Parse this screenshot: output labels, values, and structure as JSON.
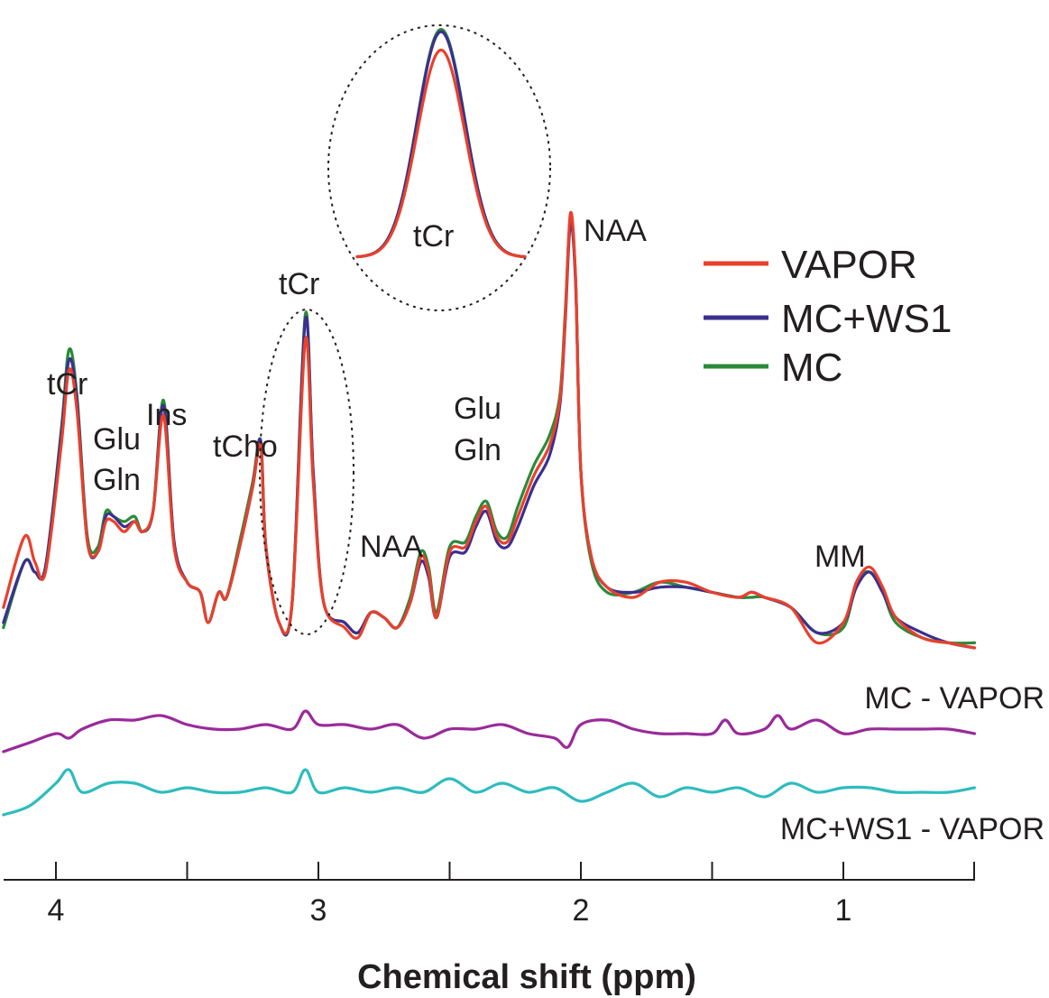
{
  "chart_data": {
    "type": "line",
    "xlabel": "Chemical shift (ppm)",
    "x_reversed": true,
    "xlim": [
      4.2,
      0.5
    ],
    "xticks": [
      4,
      3,
      2,
      1
    ],
    "minor_xticks": [
      3.5,
      2.5,
      1.5
    ],
    "colors": {
      "VAPOR": "#e8412c",
      "MC+WS1": "#3b2f8f",
      "MC": "#2b8a3a",
      "MC - VAPOR": "#9a2a9a",
      "MC+WS1 - VAPOR": "#2ebcbf"
    },
    "series": [
      {
        "name": "VAPOR",
        "points": [
          [
            4.2,
            0.03
          ],
          [
            4.12,
            0.17
          ],
          [
            4.08,
            0.12
          ],
          [
            4.04,
            0.1
          ],
          [
            3.98,
            0.35
          ],
          [
            3.95,
            0.5
          ],
          [
            3.92,
            0.42
          ],
          [
            3.88,
            0.16
          ],
          [
            3.84,
            0.14
          ],
          [
            3.81,
            0.2
          ],
          [
            3.78,
            0.2
          ],
          [
            3.74,
            0.18
          ],
          [
            3.7,
            0.2
          ],
          [
            3.67,
            0.18
          ],
          [
            3.63,
            0.22
          ],
          [
            3.59,
            0.41
          ],
          [
            3.55,
            0.15
          ],
          [
            3.5,
            0.08
          ],
          [
            3.45,
            0.06
          ],
          [
            3.42,
            0.0
          ],
          [
            3.38,
            0.06
          ],
          [
            3.35,
            0.05
          ],
          [
            3.3,
            0.15
          ],
          [
            3.25,
            0.27
          ],
          [
            3.22,
            0.35
          ],
          [
            3.2,
            0.15
          ],
          [
            3.15,
            0.0
          ],
          [
            3.1,
            0.04
          ],
          [
            3.05,
            0.56
          ],
          [
            3.02,
            0.28
          ],
          [
            2.98,
            0.04
          ],
          [
            2.9,
            -0.01
          ],
          [
            2.85,
            -0.03
          ],
          [
            2.8,
            0.02
          ],
          [
            2.75,
            0.01
          ],
          [
            2.7,
            -0.01
          ],
          [
            2.65,
            0.04
          ],
          [
            2.61,
            0.13
          ],
          [
            2.58,
            0.1
          ],
          [
            2.55,
            0.01
          ],
          [
            2.5,
            0.14
          ],
          [
            2.44,
            0.15
          ],
          [
            2.4,
            0.2
          ],
          [
            2.36,
            0.23
          ],
          [
            2.32,
            0.17
          ],
          [
            2.28,
            0.16
          ],
          [
            2.24,
            0.21
          ],
          [
            2.18,
            0.29
          ],
          [
            2.12,
            0.35
          ],
          [
            2.08,
            0.44
          ],
          [
            2.06,
            0.6
          ],
          [
            2.04,
            0.81
          ],
          [
            2.02,
            0.68
          ],
          [
            2.0,
            0.3
          ],
          [
            1.96,
            0.13
          ],
          [
            1.9,
            0.07
          ],
          [
            1.8,
            0.05
          ],
          [
            1.7,
            0.08
          ],
          [
            1.6,
            0.08
          ],
          [
            1.5,
            0.06
          ],
          [
            1.4,
            0.05
          ],
          [
            1.35,
            0.06
          ],
          [
            1.3,
            0.05
          ],
          [
            1.2,
            0.03
          ],
          [
            1.1,
            -0.04
          ],
          [
            1.0,
            0.0
          ],
          [
            0.95,
            0.08
          ],
          [
            0.9,
            0.11
          ],
          [
            0.85,
            0.07
          ],
          [
            0.8,
            0.01
          ],
          [
            0.7,
            -0.03
          ],
          [
            0.6,
            -0.04
          ],
          [
            0.5,
            -0.05
          ]
        ]
      },
      {
        "name": "MC+WS1",
        "points": [
          [
            4.2,
            0.0
          ],
          [
            4.12,
            0.12
          ],
          [
            4.08,
            0.1
          ],
          [
            4.04,
            0.11
          ],
          [
            3.98,
            0.37
          ],
          [
            3.95,
            0.52
          ],
          [
            3.92,
            0.44
          ],
          [
            3.88,
            0.16
          ],
          [
            3.84,
            0.14
          ],
          [
            3.81,
            0.21
          ],
          [
            3.78,
            0.21
          ],
          [
            3.74,
            0.19
          ],
          [
            3.7,
            0.2
          ],
          [
            3.67,
            0.18
          ],
          [
            3.63,
            0.22
          ],
          [
            3.59,
            0.43
          ],
          [
            3.55,
            0.16
          ],
          [
            3.5,
            0.08
          ],
          [
            3.45,
            0.06
          ],
          [
            3.42,
            0.0
          ],
          [
            3.38,
            0.06
          ],
          [
            3.35,
            0.05
          ],
          [
            3.3,
            0.15
          ],
          [
            3.25,
            0.27
          ],
          [
            3.22,
            0.36
          ],
          [
            3.2,
            0.15
          ],
          [
            3.15,
            0.0
          ],
          [
            3.1,
            0.04
          ],
          [
            3.05,
            0.6
          ],
          [
            3.02,
            0.3
          ],
          [
            2.98,
            0.04
          ],
          [
            2.9,
            0.0
          ],
          [
            2.85,
            -0.02
          ],
          [
            2.8,
            0.02
          ],
          [
            2.75,
            0.01
          ],
          [
            2.7,
            -0.01
          ],
          [
            2.65,
            0.04
          ],
          [
            2.61,
            0.12
          ],
          [
            2.58,
            0.09
          ],
          [
            2.55,
            0.01
          ],
          [
            2.5,
            0.13
          ],
          [
            2.44,
            0.14
          ],
          [
            2.4,
            0.19
          ],
          [
            2.36,
            0.22
          ],
          [
            2.32,
            0.16
          ],
          [
            2.28,
            0.15
          ],
          [
            2.24,
            0.19
          ],
          [
            2.18,
            0.27
          ],
          [
            2.12,
            0.33
          ],
          [
            2.08,
            0.43
          ],
          [
            2.06,
            0.59
          ],
          [
            2.04,
            0.79
          ],
          [
            2.02,
            0.67
          ],
          [
            2.0,
            0.3
          ],
          [
            1.96,
            0.13
          ],
          [
            1.9,
            0.07
          ],
          [
            1.8,
            0.06
          ],
          [
            1.7,
            0.07
          ],
          [
            1.6,
            0.07
          ],
          [
            1.5,
            0.06
          ],
          [
            1.4,
            0.05
          ],
          [
            1.35,
            0.06
          ],
          [
            1.3,
            0.05
          ],
          [
            1.2,
            0.03
          ],
          [
            1.1,
            -0.02
          ],
          [
            1.0,
            0.0
          ],
          [
            0.95,
            0.07
          ],
          [
            0.9,
            0.1
          ],
          [
            0.85,
            0.06
          ],
          [
            0.8,
            0.01
          ],
          [
            0.7,
            -0.02
          ],
          [
            0.6,
            -0.04
          ],
          [
            0.5,
            -0.05
          ]
        ]
      },
      {
        "name": "MC",
        "points": [
          [
            4.2,
            -0.01
          ],
          [
            4.12,
            0.12
          ],
          [
            4.08,
            0.1
          ],
          [
            4.04,
            0.11
          ],
          [
            3.98,
            0.38
          ],
          [
            3.95,
            0.54
          ],
          [
            3.92,
            0.45
          ],
          [
            3.88,
            0.17
          ],
          [
            3.84,
            0.15
          ],
          [
            3.81,
            0.22
          ],
          [
            3.78,
            0.21
          ],
          [
            3.74,
            0.2
          ],
          [
            3.7,
            0.21
          ],
          [
            3.67,
            0.18
          ],
          [
            3.63,
            0.22
          ],
          [
            3.59,
            0.44
          ],
          [
            3.55,
            0.16
          ],
          [
            3.5,
            0.08
          ],
          [
            3.45,
            0.06
          ],
          [
            3.42,
            0.0
          ],
          [
            3.38,
            0.06
          ],
          [
            3.35,
            0.05
          ],
          [
            3.3,
            0.16
          ],
          [
            3.25,
            0.28
          ],
          [
            3.22,
            0.36
          ],
          [
            3.2,
            0.15
          ],
          [
            3.15,
            0.0
          ],
          [
            3.1,
            0.04
          ],
          [
            3.05,
            0.61
          ],
          [
            3.02,
            0.3
          ],
          [
            2.98,
            0.04
          ],
          [
            2.9,
            0.0
          ],
          [
            2.85,
            -0.02
          ],
          [
            2.8,
            0.02
          ],
          [
            2.75,
            0.01
          ],
          [
            2.7,
            -0.01
          ],
          [
            2.65,
            0.05
          ],
          [
            2.61,
            0.14
          ],
          [
            2.58,
            0.11
          ],
          [
            2.55,
            0.02
          ],
          [
            2.5,
            0.15
          ],
          [
            2.44,
            0.16
          ],
          [
            2.4,
            0.21
          ],
          [
            2.36,
            0.24
          ],
          [
            2.32,
            0.18
          ],
          [
            2.28,
            0.17
          ],
          [
            2.24,
            0.23
          ],
          [
            2.18,
            0.31
          ],
          [
            2.12,
            0.37
          ],
          [
            2.08,
            0.45
          ],
          [
            2.06,
            0.61
          ],
          [
            2.04,
            0.8
          ],
          [
            2.02,
            0.68
          ],
          [
            2.0,
            0.3
          ],
          [
            1.96,
            0.12
          ],
          [
            1.9,
            0.06
          ],
          [
            1.8,
            0.06
          ],
          [
            1.7,
            0.08
          ],
          [
            1.6,
            0.07
          ],
          [
            1.5,
            0.06
          ],
          [
            1.4,
            0.05
          ],
          [
            1.35,
            0.05
          ],
          [
            1.3,
            0.05
          ],
          [
            1.2,
            0.03
          ],
          [
            1.1,
            -0.02
          ],
          [
            1.0,
            -0.01
          ],
          [
            0.95,
            0.08
          ],
          [
            0.9,
            0.1
          ],
          [
            0.85,
            0.06
          ],
          [
            0.8,
            0.0
          ],
          [
            0.7,
            -0.03
          ],
          [
            0.6,
            -0.04
          ],
          [
            0.5,
            -0.04
          ]
        ]
      },
      {
        "name": "MC - VAPOR",
        "points": [
          [
            4.2,
            -0.05
          ],
          [
            4.1,
            -0.03
          ],
          [
            4.0,
            -0.01
          ],
          [
            3.95,
            -0.02
          ],
          [
            3.9,
            0.0
          ],
          [
            3.8,
            0.02
          ],
          [
            3.7,
            0.02
          ],
          [
            3.6,
            0.03
          ],
          [
            3.5,
            0.01
          ],
          [
            3.4,
            0.0
          ],
          [
            3.3,
            0.0
          ],
          [
            3.2,
            0.01
          ],
          [
            3.1,
            0.0
          ],
          [
            3.05,
            0.04
          ],
          [
            3.0,
            0.01
          ],
          [
            2.9,
            0.01
          ],
          [
            2.8,
            0.0
          ],
          [
            2.7,
            0.01
          ],
          [
            2.6,
            -0.02
          ],
          [
            2.5,
            0.0
          ],
          [
            2.4,
            0.0
          ],
          [
            2.3,
            0.01
          ],
          [
            2.2,
            -0.01
          ],
          [
            2.1,
            -0.02
          ],
          [
            2.05,
            -0.04
          ],
          [
            2.0,
            0.01
          ],
          [
            1.9,
            0.02
          ],
          [
            1.8,
            0.0
          ],
          [
            1.7,
            -0.01
          ],
          [
            1.6,
            -0.01
          ],
          [
            1.5,
            -0.01
          ],
          [
            1.45,
            0.02
          ],
          [
            1.4,
            -0.01
          ],
          [
            1.3,
            0.0
          ],
          [
            1.25,
            0.03
          ],
          [
            1.2,
            0.0
          ],
          [
            1.1,
            0.02
          ],
          [
            1.0,
            -0.01
          ],
          [
            0.9,
            0.0
          ],
          [
            0.8,
            0.0
          ],
          [
            0.7,
            0.0
          ],
          [
            0.6,
            0.0
          ],
          [
            0.5,
            -0.01
          ]
        ]
      },
      {
        "name": "MC+WS1 - VAPOR",
        "points": [
          [
            4.2,
            -0.05
          ],
          [
            4.1,
            -0.03
          ],
          [
            4.0,
            0.02
          ],
          [
            3.95,
            0.05
          ],
          [
            3.9,
            0.0
          ],
          [
            3.8,
            0.02
          ],
          [
            3.7,
            0.02
          ],
          [
            3.6,
            0.0
          ],
          [
            3.5,
            0.01
          ],
          [
            3.4,
            0.0
          ],
          [
            3.3,
            0.0
          ],
          [
            3.2,
            0.01
          ],
          [
            3.1,
            0.0
          ],
          [
            3.05,
            0.05
          ],
          [
            3.0,
            0.0
          ],
          [
            2.9,
            0.01
          ],
          [
            2.8,
            0.0
          ],
          [
            2.7,
            0.01
          ],
          [
            2.6,
            0.0
          ],
          [
            2.5,
            0.03
          ],
          [
            2.4,
            0.0
          ],
          [
            2.3,
            0.02
          ],
          [
            2.2,
            0.0
          ],
          [
            2.1,
            0.01
          ],
          [
            2.0,
            -0.02
          ],
          [
            1.9,
            0.0
          ],
          [
            1.8,
            0.02
          ],
          [
            1.7,
            -0.01
          ],
          [
            1.6,
            0.01
          ],
          [
            1.5,
            0.0
          ],
          [
            1.4,
            0.01
          ],
          [
            1.3,
            -0.01
          ],
          [
            1.2,
            0.02
          ],
          [
            1.1,
            0.0
          ],
          [
            1.0,
            0.01
          ],
          [
            0.9,
            0.01
          ],
          [
            0.8,
            0.0
          ],
          [
            0.7,
            0.0
          ],
          [
            0.6,
            0.0
          ],
          [
            0.5,
            0.01
          ]
        ]
      }
    ],
    "inset": {
      "label": "tCr",
      "series": [
        "VAPOR",
        "MC+WS1",
        "MC"
      ],
      "peak_heights": {
        "VAPOR": 0.9,
        "MC+WS1": 0.98,
        "MC": 0.99
      }
    },
    "annotations": [
      "tCr",
      "Glu",
      "Gln",
      "Ins",
      "tCho",
      "tCr",
      "NAA",
      "Glu",
      "Gln",
      "NAA",
      "MM"
    ],
    "difference_labels": [
      "MC - VAPOR",
      "MC+WS1 - VAPOR"
    ],
    "legend": {
      "position": "right",
      "entries": [
        "VAPOR",
        "MC+WS1",
        "MC"
      ]
    }
  }
}
